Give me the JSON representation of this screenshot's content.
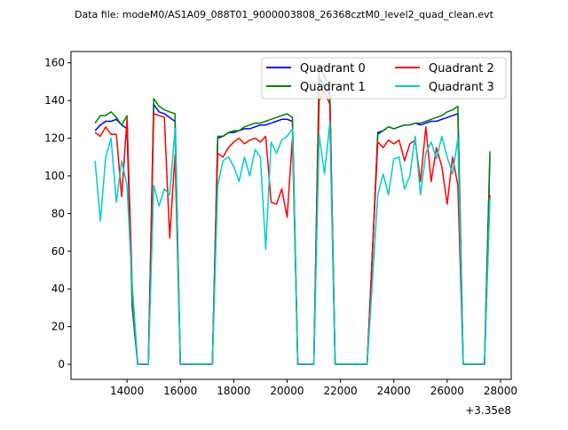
{
  "chart_data": {
    "type": "line",
    "title": "Data file: modeM0/AS1A09_088T01_9000003808_26368cztM0_level2_quad_clean.evt",
    "xlabel": "",
    "ylabel": "",
    "x_offset_label": "+3.35e8",
    "xlim": [
      11900,
      28400
    ],
    "ylim": [
      -8,
      166
    ],
    "xticks": [
      14000,
      16000,
      18000,
      20000,
      22000,
      24000,
      26000,
      28000
    ],
    "yticks": [
      0,
      20,
      40,
      60,
      80,
      100,
      120,
      140,
      160
    ],
    "legend_position": "top-right",
    "x": [
      12800,
      13000,
      13200,
      13400,
      13600,
      13800,
      14000,
      14200,
      14400,
      14600,
      14800,
      15000,
      15200,
      15400,
      15600,
      15800,
      16000,
      16200,
      16400,
      16600,
      16800,
      17000,
      17200,
      17400,
      17600,
      17800,
      18000,
      18200,
      18400,
      18600,
      18800,
      19000,
      19200,
      19400,
      19600,
      19800,
      20000,
      20200,
      20400,
      20600,
      20800,
      21000,
      21200,
      21400,
      21600,
      21800,
      22000,
      22200,
      22400,
      22600,
      22800,
      23000,
      23200,
      23400,
      23600,
      23800,
      24000,
      24200,
      24400,
      24600,
      24800,
      25000,
      25200,
      25400,
      25600,
      25800,
      26000,
      26200,
      26400,
      26600,
      26800,
      27000,
      27200,
      27400,
      27600
    ],
    "series": [
      {
        "name": "Quadrant 0",
        "color": "#0000ff",
        "values": [
          124,
          127,
          129,
          129,
          130,
          127,
          125,
          30,
          0,
          0,
          0,
          138,
          134,
          133,
          131,
          129,
          0,
          0,
          0,
          0,
          0,
          0,
          0,
          120,
          121,
          123,
          123,
          124,
          125,
          125,
          126,
          127,
          127,
          128,
          129,
          130,
          130,
          129,
          0,
          0,
          0,
          0,
          152,
          147,
          143,
          0,
          0,
          0,
          0,
          0,
          0,
          0,
          60,
          123,
          124,
          126,
          125,
          126,
          127,
          127,
          128,
          127,
          128,
          129,
          129,
          130,
          131,
          132,
          133,
          0,
          0,
          0,
          0,
          0,
          110
        ]
      },
      {
        "name": "Quadrant 1",
        "color": "#008000",
        "values": [
          128,
          132,
          132,
          134,
          131,
          127,
          132,
          30,
          0,
          0,
          0,
          141,
          137,
          135,
          134,
          133,
          0,
          0,
          0,
          0,
          0,
          0,
          0,
          121,
          121,
          123,
          124,
          124,
          126,
          127,
          128,
          128,
          129,
          130,
          131,
          132,
          133,
          131,
          0,
          0,
          0,
          0,
          158,
          153,
          145,
          0,
          0,
          0,
          0,
          0,
          0,
          0,
          60,
          122,
          124,
          126,
          125,
          126,
          127,
          127,
          128,
          128,
          129,
          130,
          131,
          132,
          134,
          135,
          137,
          0,
          0,
          0,
          0,
          0,
          113
        ]
      },
      {
        "name": "Quadrant 2",
        "color": "#ff0000",
        "values": [
          123,
          121,
          126,
          122,
          122,
          89,
          130,
          40,
          0,
          0,
          0,
          133,
          132,
          131,
          67,
          111,
          0,
          0,
          0,
          0,
          0,
          0,
          0,
          112,
          110,
          115,
          118,
          120,
          117,
          119,
          120,
          118,
          121,
          86,
          85,
          93,
          78,
          120,
          0,
          0,
          0,
          0,
          140,
          145,
          138,
          0,
          0,
          0,
          0,
          0,
          0,
          0,
          60,
          118,
          115,
          119,
          117,
          119,
          108,
          117,
          119,
          97,
          126,
          97,
          115,
          105,
          85,
          110,
          95,
          0,
          0,
          0,
          0,
          0,
          90
        ]
      },
      {
        "name": "Quadrant 3",
        "color": "#00cccc",
        "values": [
          108,
          76,
          110,
          120,
          86,
          108,
          95,
          40,
          0,
          0,
          0,
          95,
          84,
          93,
          90,
          125,
          0,
          0,
          0,
          0,
          0,
          0,
          0,
          95,
          108,
          110,
          105,
          97,
          110,
          100,
          114,
          110,
          61,
          118,
          112,
          119,
          121,
          125,
          0,
          0,
          0,
          0,
          122,
          101,
          128,
          0,
          0,
          0,
          0,
          0,
          0,
          0,
          45,
          90,
          101,
          90,
          109,
          110,
          93,
          100,
          121,
          90,
          112,
          118,
          109,
          121,
          110,
          101,
          120,
          0,
          0,
          0,
          0,
          0,
          88
        ]
      }
    ]
  }
}
